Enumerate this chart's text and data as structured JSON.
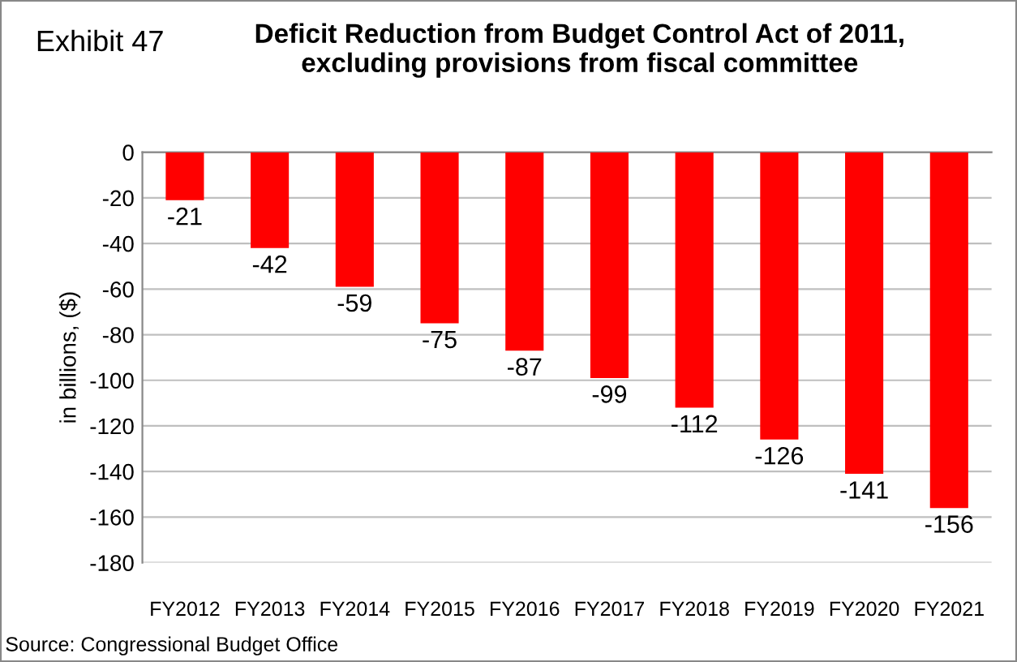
{
  "chart_data": {
    "type": "bar",
    "title": "Deficit Reduction from Budget Control Act of 2011,\nexcluding provisions from fiscal committee",
    "ylabel": "in billions, ($)",
    "annotations": [
      "Exhibit 47",
      "Source: Congressional Budget Office"
    ],
    "categories": [
      "FY2012",
      "FY2013",
      "FY2014",
      "FY2015",
      "FY2016",
      "FY2017",
      "FY2018",
      "FY2019",
      "FY2020",
      "FY2021"
    ],
    "values": [
      -21,
      -42,
      -59,
      -75,
      -87,
      -99,
      -112,
      -126,
      -141,
      -156
    ],
    "color": "#ff0000",
    "ylim": [
      -180,
      0
    ],
    "yticks": [
      -180,
      -160,
      -140,
      -120,
      -100,
      -80,
      -60,
      -40,
      -20,
      0
    ],
    "grid": "y",
    "data_labels": true
  }
}
